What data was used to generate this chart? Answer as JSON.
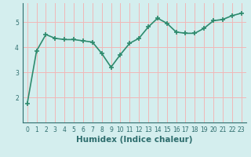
{
  "x": [
    0,
    1,
    2,
    3,
    4,
    5,
    6,
    7,
    8,
    9,
    10,
    11,
    12,
    13,
    14,
    15,
    16,
    17,
    18,
    19,
    20,
    21,
    22,
    23
  ],
  "y": [
    1.75,
    3.85,
    4.5,
    4.35,
    4.3,
    4.3,
    4.25,
    4.2,
    3.75,
    3.2,
    3.7,
    4.15,
    4.35,
    4.8,
    5.15,
    4.95,
    4.6,
    4.55,
    4.55,
    4.75,
    5.05,
    5.1,
    5.25,
    5.35
  ],
  "line_color": "#2e8b6e",
  "marker": "+",
  "marker_size": 4,
  "bg_color": "#d4eeee",
  "grid_color": "#f0b8b8",
  "xlabel": "Humidex (Indice chaleur)",
  "ylim": [
    1.0,
    5.75
  ],
  "xlim": [
    -0.5,
    23.5
  ],
  "yticks": [
    2,
    3,
    4,
    5
  ],
  "xticks": [
    0,
    1,
    2,
    3,
    4,
    5,
    6,
    7,
    8,
    9,
    10,
    11,
    12,
    13,
    14,
    15,
    16,
    17,
    18,
    19,
    20,
    21,
    22,
    23
  ],
  "font_color": "#2e6e6e",
  "line_width": 1.2,
  "tick_fontsize": 5.5,
  "xlabel_fontsize": 7.5
}
